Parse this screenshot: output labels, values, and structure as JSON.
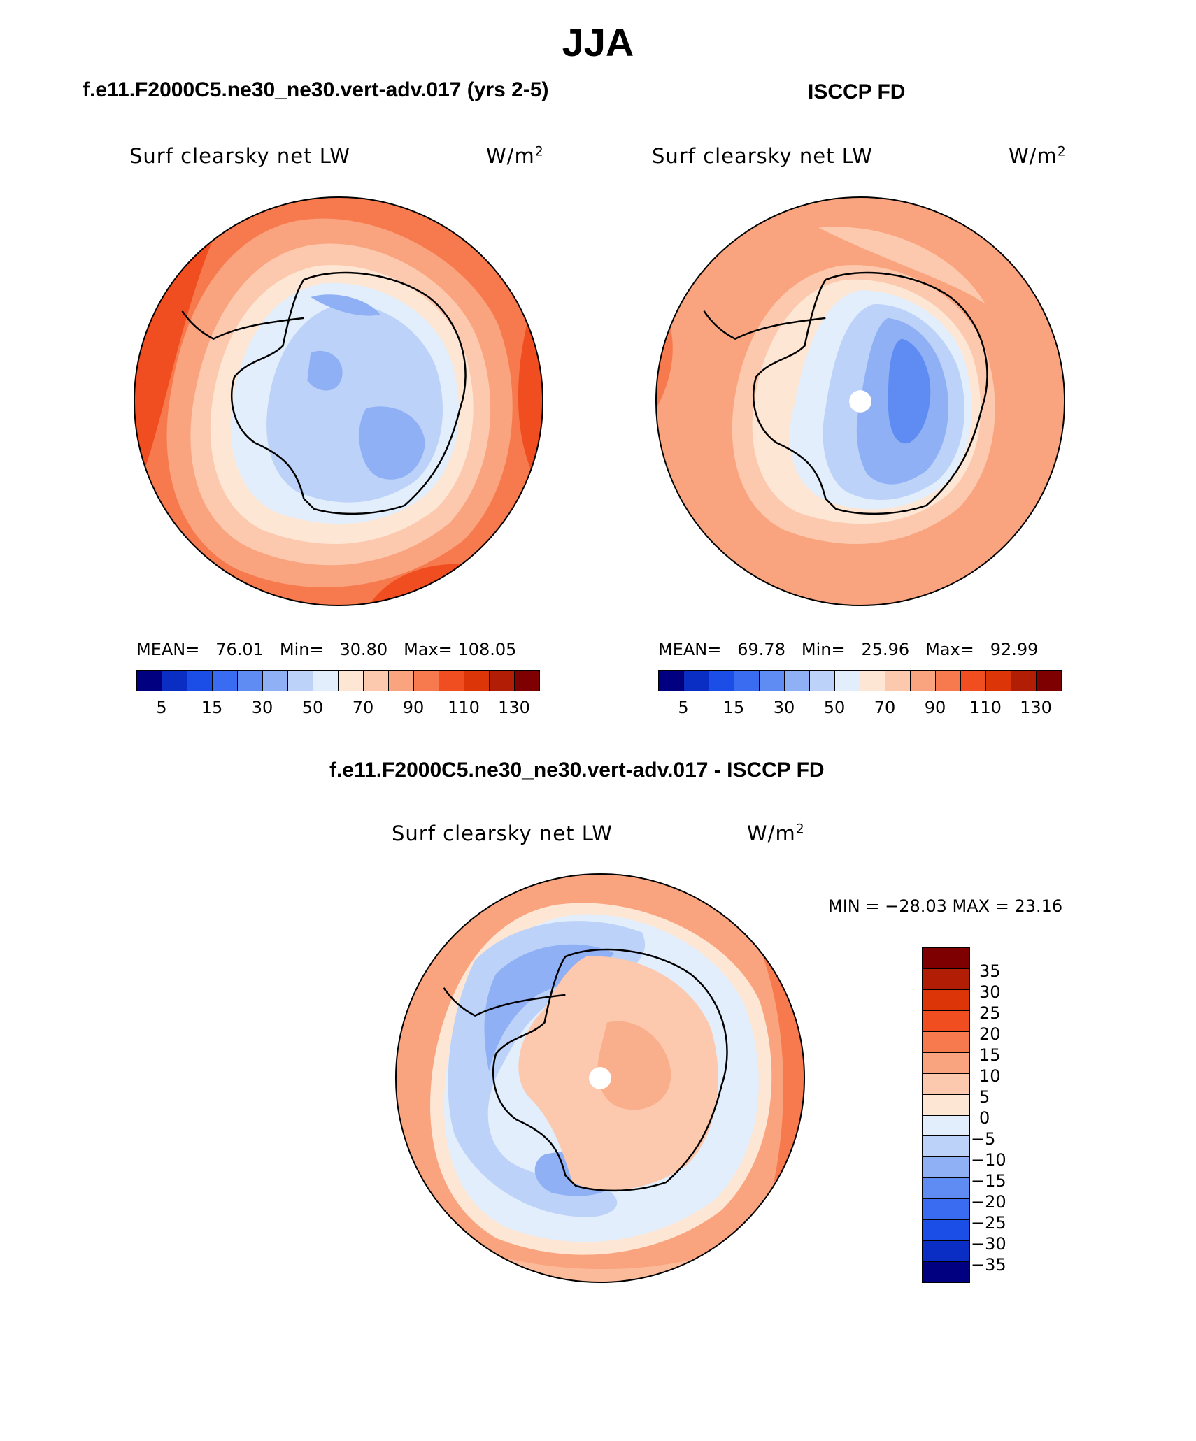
{
  "title": "JJA",
  "panel_left": {
    "case": "f.e11.F2000C5.ne30_ne30.vert-adv.017 (yrs 2-5)",
    "variable": "Surf clearsky net LW",
    "units_base": "W/m",
    "units_exp": "2",
    "stats": {
      "mean_label": "MEAN=",
      "mean": "76.01",
      "min_label": "Min=",
      "min": "30.80",
      "max_label": "Max=",
      "max": "108.05"
    },
    "colorbar_ticks": [
      "5",
      "15",
      "30",
      "50",
      "70",
      "90",
      "110",
      "130"
    ]
  },
  "panel_right": {
    "case": "ISCCP FD",
    "variable": "Surf clearsky net LW",
    "units_base": "W/m",
    "units_exp": "2",
    "stats": {
      "mean_label": "MEAN=",
      "mean": "69.78",
      "min_label": "Min=",
      "min": "25.96",
      "max_label": "Max=",
      "max": "92.99"
    },
    "colorbar_ticks": [
      "5",
      "15",
      "30",
      "50",
      "70",
      "90",
      "110",
      "130"
    ]
  },
  "panel_diff": {
    "case": "f.e11.F2000C5.ne30_ne30.vert-adv.017 - ISCCP FD",
    "variable": "Surf clearsky net LW",
    "units_base": "W/m",
    "units_exp": "2",
    "minmax": "MIN = −28.03 MAX =   23.16",
    "colorbar_ticks": [
      "35",
      "30",
      "25",
      "20",
      "15",
      "10",
      "5",
      "0",
      "−5",
      "−10",
      "−15",
      "−20",
      "−25",
      "−30",
      "−35"
    ]
  },
  "colors": {
    "seq_scale": [
      "#000080",
      "#0a2ec4",
      "#1a4ee6",
      "#3a6cf2",
      "#5f8cf2",
      "#8fb0f5",
      "#bcd2f8",
      "#e2eefb",
      "#fde6d4",
      "#fcc9ae",
      "#f9a47e",
      "#f77a4e",
      "#f04e20",
      "#dc3608",
      "#b21e05",
      "#7f0000"
    ],
    "land_outline": "#000000",
    "pole_hole": "#ffffff"
  }
}
